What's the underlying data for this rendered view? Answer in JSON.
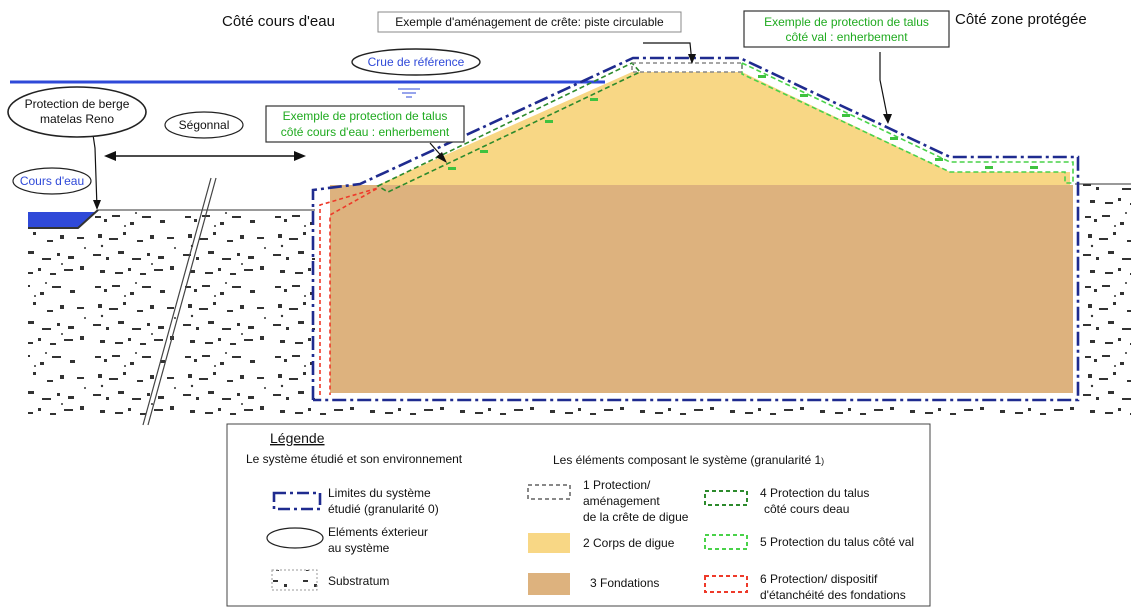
{
  "headers": {
    "left_side": "Côté cours d'eau",
    "right_side": "Côté zone protégée"
  },
  "callouts": {
    "crest": "Exemple d'aménagement de crête: piste circulable",
    "val_slope_line1": "Exemple de protection de talus",
    "val_slope_line2": "côté val : enherbement",
    "water_slope_line1": "Exemple de protection de talus",
    "water_slope_line2": "côté cours d'eau : enherbement",
    "crue": "Crue de référence",
    "berge_line1": "Protection de berge",
    "berge_line2": "matelas Reno",
    "segonnal": "Ségonnal",
    "cours_eau": "Cours d'eau"
  },
  "legend": {
    "title": "Légende",
    "left_heading": "Le système étudié et son environnement",
    "right_heading": "Les éléments composant le système (granularité 1",
    "right_heading_suffix": ")",
    "limits_line1": "Limites du système",
    "limits_line2": "étudié (granularité 0)",
    "exterior_line1": "Eléments éxterieur",
    "exterior_line2": "au système",
    "substratum": "Substratum",
    "item1_line1": "1 Protection/",
    "item1_line2": "aménagement",
    "item1_line3": "de la crête de digue",
    "item2": "2 Corps de digue",
    "item3": "3 Fondations",
    "item4_line1": "4 Protection du talus",
    "item4_line2": "côté cours deau",
    "item5": "5 Protection du talus côté val",
    "item6_line1": "6 Protection/ dispositif",
    "item6_line2": "d'étanchéité  des fondations"
  },
  "colors": {
    "water": "#2f49d8",
    "limit_blue": "#1f2b8f",
    "digue_body": "#f8d785",
    "foundation": "#ddb27e",
    "water_green": "#2c8a2c",
    "val_green": "#49d249",
    "seal_red": "#ee3a2a",
    "crest_grey": "#888888",
    "label_blue": "#2f49d8",
    "label_green": "#1faa1f"
  }
}
